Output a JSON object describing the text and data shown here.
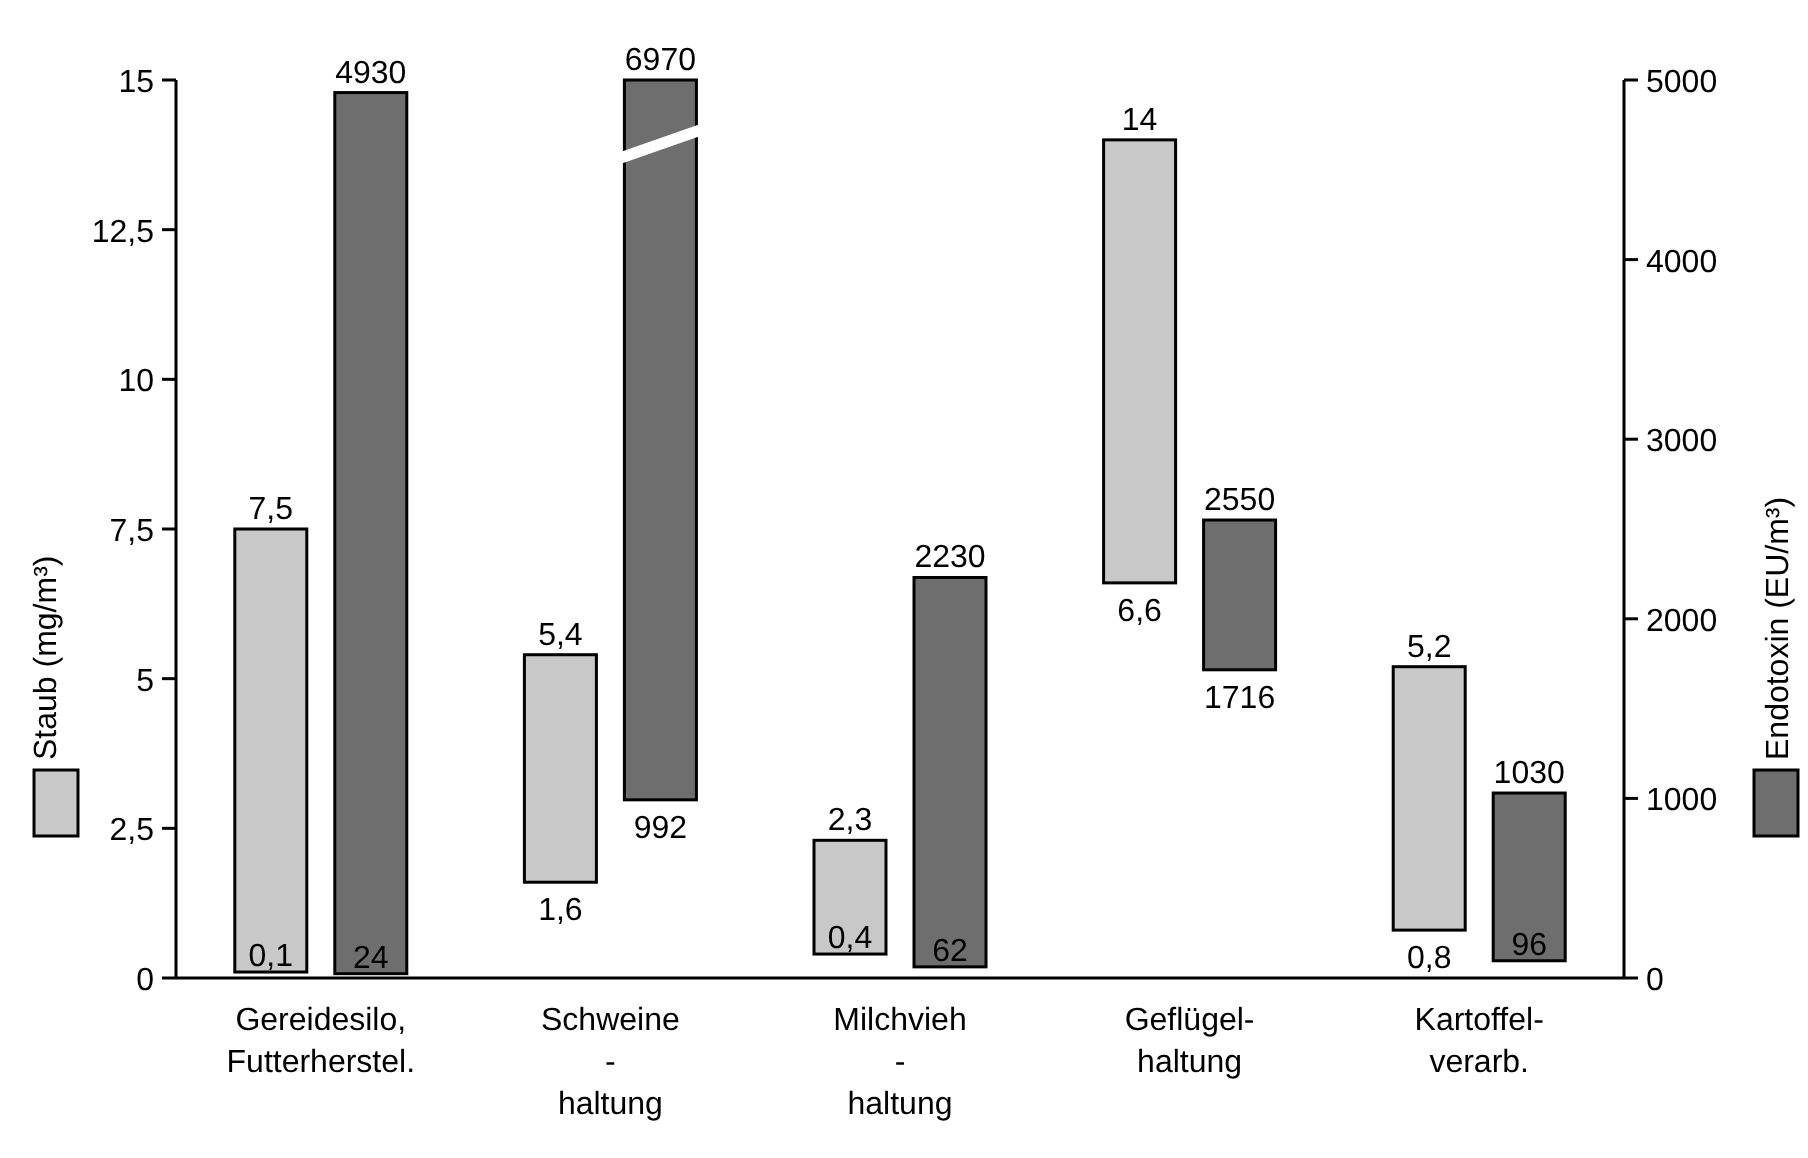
{
  "chart_data": {
    "type": "bar",
    "categories": [
      "Gereidesilo,\nFutterherstel.",
      "Schweine\n-\nhaltung",
      "Milchvieh\n-\nhaltung",
      "Geflügel-\nhaltung",
      "Kartoffel-\nverarb."
    ],
    "series": [
      {
        "color": "#c8c8c8",
        "base": [
          0.1,
          1.6,
          0.4,
          6.6,
          0.8
        ],
        "values": [
          7.4,
          3.8,
          1.9,
          7.4,
          4.4
        ],
        "value_labels": [
          "7,5",
          "5,4",
          "2,3",
          "14",
          "5,2"
        ]
      },
      {
        "color": "#6e6e6e",
        "axis": "y2",
        "base": [
          24,
          992,
          62,
          1716,
          96
        ],
        "values": [
          4906,
          5978,
          2168,
          834,
          934
        ],
        "value_labels": [
          "4930",
          "6970",
          "2230",
          "2550",
          "1030"
        ]
      }
    ],
    "ylabel": "Staub (mg/m³)",
    "y2label": "Endotoxin (EU/m³)",
    "ylim": [
      0,
      15
    ],
    "yticks": [
      0,
      {
        "value": 2.5,
        "label": "2,5"
      },
      5,
      {
        "value": 7.5,
        "label": "7,5"
      },
      10,
      {
        "value": 12.5,
        "label": "12,5"
      },
      15
    ],
    "y2lim": [
      0,
      5000
    ],
    "y2ticks": [
      0,
      1000,
      2000,
      3000,
      4000,
      5000
    ],
    "annotations": [
      "0,1",
      "1,6",
      "0,4",
      "6,6",
      "0,8",
      "24",
      "992",
      "62",
      "1716",
      "96"
    ],
    "grid": false
  }
}
